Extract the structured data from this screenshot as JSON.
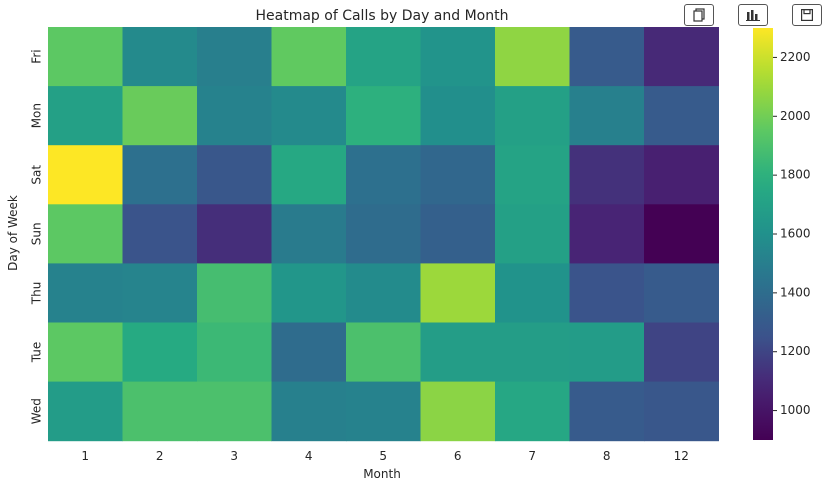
{
  "chart_data": {
    "type": "heatmap",
    "title": "Heatmap of Calls by Day and Month",
    "xlabel": "Month",
    "ylabel": "Day of Week",
    "x": [
      "1",
      "2",
      "3",
      "4",
      "5",
      "6",
      "7",
      "8",
      "12"
    ],
    "y": [
      "Fri",
      "Mon",
      "Sat",
      "Sun",
      "Thu",
      "Tue",
      "Wed"
    ],
    "values": [
      [
        1950,
        1560,
        1500,
        1960,
        1720,
        1620,
        2070,
        1300,
        1100
      ],
      [
        1700,
        1980,
        1520,
        1560,
        1800,
        1590,
        1700,
        1510,
        1300
      ],
      [
        2300,
        1420,
        1280,
        1750,
        1420,
        1370,
        1720,
        1130,
        1060
      ],
      [
        1950,
        1260,
        1120,
        1480,
        1400,
        1330,
        1700,
        1080,
        900
      ],
      [
        1520,
        1530,
        1880,
        1630,
        1570,
        2100,
        1610,
        1260,
        1300
      ],
      [
        1950,
        1760,
        1850,
        1400,
        1900,
        1680,
        1680,
        1670,
        1200
      ],
      [
        1670,
        1900,
        1900,
        1510,
        1520,
        2060,
        1740,
        1300,
        1280
      ]
    ],
    "colorbar": {
      "range": [
        900,
        2300
      ],
      "ticks": [
        1000,
        1200,
        1400,
        1600,
        1800,
        2000,
        2200
      ]
    },
    "colormap": "viridis"
  },
  "toolbar": {
    "copy_icon": "copy-icon",
    "chart_icon": "bar-chart-icon",
    "save_icon": "save-icon"
  }
}
